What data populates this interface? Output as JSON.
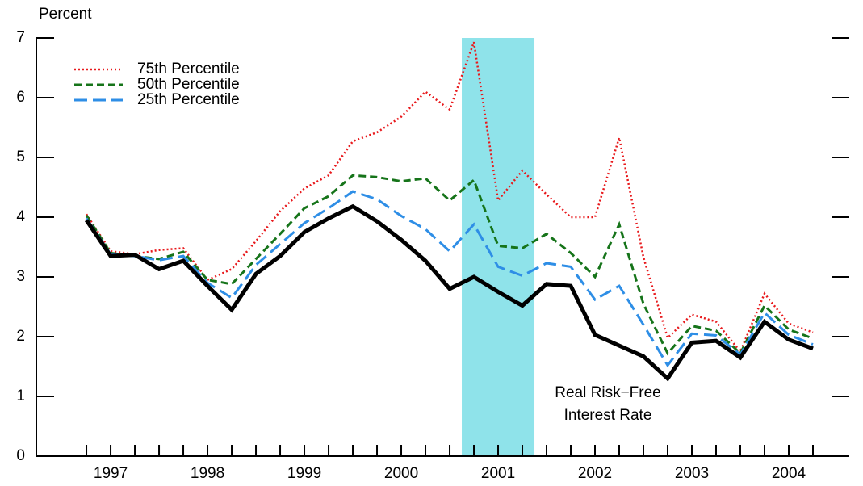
{
  "chart_data": {
    "type": "line",
    "y_label": "Percent",
    "annotation": [
      "Real Risk−Free",
      "Interest Rate"
    ],
    "x": [
      1997,
      1997.25,
      1997.5,
      1997.75,
      1998,
      1998.25,
      1998.5,
      1998.75,
      1999,
      1999.25,
      1999.5,
      1999.75,
      2000,
      2000.25,
      2000.5,
      2000.75,
      2001,
      2001.25,
      2001.5,
      2001.75,
      2002,
      2002.25,
      2002.5,
      2002.75,
      2003,
      2003.25,
      2003.5,
      2003.75,
      2004,
      2004.25,
      2004.5
    ],
    "series": [
      {
        "name": "75th Percentile",
        "color": "#e8191c",
        "dash": "dotted",
        "values": [
          4.05,
          3.43,
          3.38,
          3.45,
          3.48,
          2.95,
          3.13,
          3.6,
          4.1,
          4.48,
          4.7,
          5.27,
          5.42,
          5.68,
          6.1,
          5.8,
          6.93,
          4.28,
          4.78,
          4.38,
          4.0,
          4.0,
          5.33,
          3.33,
          1.98,
          2.37,
          2.25,
          1.75,
          2.72,
          2.22,
          2.07
        ]
      },
      {
        "name": "50th Percentile",
        "color": "#16741a",
        "dash": "dashed",
        "values": [
          4.03,
          3.4,
          3.35,
          3.3,
          3.42,
          2.95,
          2.88,
          3.3,
          3.72,
          4.15,
          4.35,
          4.7,
          4.67,
          4.6,
          4.65,
          4.28,
          4.62,
          3.52,
          3.48,
          3.72,
          3.4,
          3.0,
          3.88,
          2.55,
          1.72,
          2.18,
          2.1,
          1.72,
          2.52,
          2.12,
          1.97
        ]
      },
      {
        "name": "25th Percentile",
        "color": "#2e8ee6",
        "dash": "long-dashed",
        "values": [
          3.98,
          3.38,
          3.35,
          3.28,
          3.35,
          2.9,
          2.65,
          3.2,
          3.55,
          3.9,
          4.15,
          4.43,
          4.3,
          4.02,
          3.8,
          3.43,
          3.88,
          3.17,
          3.02,
          3.23,
          3.17,
          2.62,
          2.85,
          2.2,
          1.52,
          2.05,
          2.02,
          1.7,
          2.4,
          2.03,
          1.87
        ]
      },
      {
        "color": "#000000",
        "dash": "solid",
        "values": [
          3.95,
          3.35,
          3.37,
          3.13,
          3.27,
          2.85,
          2.45,
          3.05,
          3.35,
          3.75,
          3.98,
          4.18,
          3.93,
          3.62,
          3.27,
          2.8,
          3.0,
          2.75,
          2.52,
          2.88,
          2.85,
          2.03,
          1.85,
          1.67,
          1.3,
          1.9,
          1.93,
          1.65,
          2.25,
          1.95,
          1.8
        ]
      }
    ],
    "shaded_x": [
      2000.875,
      2001.625
    ],
    "shade_color": "#8fe3ea",
    "xlim": [
      1996.483,
      2004.875
    ],
    "xticks": [
      1997,
      1998,
      1999,
      2000,
      2001,
      2002,
      2003,
      2004
    ],
    "ylim": [
      0,
      7
    ],
    "yticks": [
      0,
      1,
      2,
      3,
      4,
      5,
      6,
      7
    ],
    "legend": "top-left"
  }
}
